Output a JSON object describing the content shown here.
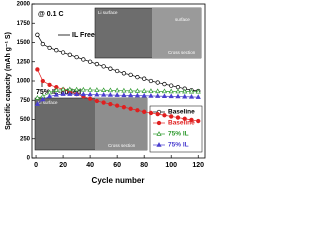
{
  "chart_data": {
    "type": "line",
    "x_label": "Cycle number",
    "y_label": "Specific capacity (mAh g⁻¹ S)",
    "x": [
      1,
      5,
      10,
      15,
      20,
      25,
      30,
      35,
      40,
      45,
      50,
      55,
      60,
      65,
      70,
      75,
      80,
      85,
      90,
      95,
      100,
      105,
      110,
      115,
      120
    ],
    "series": [
      {
        "name": "Baseline",
        "color": "#000000",
        "marker": "circle-open",
        "values": [
          1600,
          1480,
          1430,
          1400,
          1370,
          1340,
          1310,
          1280,
          1250,
          1220,
          1190,
          1160,
          1130,
          1100,
          1080,
          1050,
          1030,
          1000,
          980,
          960,
          940,
          920,
          900,
          880,
          870
        ]
      },
      {
        "name": "Baseline",
        "color": "#e02020",
        "marker": "circle-filled",
        "values": [
          1150,
          1000,
          950,
          920,
          890,
          860,
          830,
          800,
          770,
          740,
          720,
          700,
          680,
          660,
          640,
          620,
          600,
          585,
          570,
          555,
          540,
          525,
          510,
          495,
          480
        ]
      },
      {
        "name": "75% IL",
        "color": "#2f9a2f",
        "marker": "triangle-open",
        "values": [
          780,
          800,
          850,
          880,
          890,
          890,
          888,
          886,
          884,
          882,
          880,
          878,
          876,
          874,
          872,
          870,
          869,
          868,
          866,
          865,
          864,
          863,
          862,
          861,
          860
        ]
      },
      {
        "name": "75% IL",
        "color": "#4a3fcf",
        "marker": "triangle-filled",
        "values": [
          700,
          760,
          800,
          820,
          830,
          830,
          828,
          826,
          824,
          822,
          820,
          818,
          816,
          814,
          812,
          810,
          808,
          806,
          804,
          802,
          800,
          798,
          796,
          794,
          790
        ]
      }
    ],
    "xlim": [
      -3,
      125
    ],
    "ylim": [
      0,
      2000
    ],
    "xticks": [
      0,
      20,
      40,
      60,
      80,
      100,
      120
    ],
    "yticks": [
      0,
      250,
      500,
      750,
      1000,
      1250,
      1500,
      1750,
      2000
    ],
    "legend": "lower right",
    "annotations": [
      "@ 0.1 C",
      "IL Free",
      "75% IL-added"
    ],
    "insets": [
      {
        "labels": [
          "Li surface",
          "surface",
          "Cross section"
        ]
      },
      {
        "labels": [
          "Li surface",
          "Cross section"
        ]
      }
    ]
  }
}
